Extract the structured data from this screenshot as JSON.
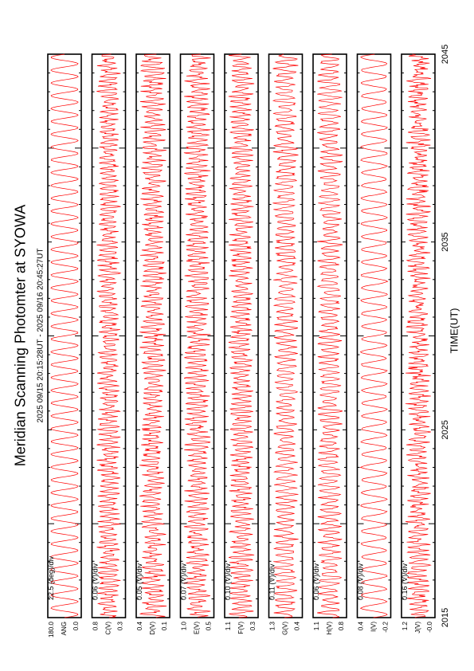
{
  "title": "Meridian Scanning Photomter at SYOWA",
  "subtitle": "2025 09/15 20:15:28UT - 2025 09/16 20:45:27UT",
  "chart_data": {
    "type": "line",
    "xlabel": "TIME(UT)",
    "xlim": [
      2015,
      2045
    ],
    "x_ticks": [
      "2015",
      "2025",
      "2035",
      "2045"
    ],
    "line_color": "#ff0000",
    "panels": [
      {
        "name": "ANG",
        "scale": "22.5 (deg)/div",
        "tick_labels": [
          "180.0",
          "0.0"
        ],
        "cycles": 44,
        "amp": 0.9,
        "noise": 0.0
      },
      {
        "name": "C(V)",
        "scale": "0.06 (V)/div",
        "tick_labels": [
          "0.8",
          "0.3"
        ],
        "cycles": 110,
        "amp": 0.5,
        "noise": 0.3
      },
      {
        "name": "D(V)",
        "scale": "0.05 (V)/div",
        "tick_labels": [
          "0.4",
          "0.1"
        ],
        "cycles": 110,
        "amp": 0.55,
        "noise": 0.35
      },
      {
        "name": "E(V)",
        "scale": "0.07 (V)/div",
        "tick_labels": [
          "1.0",
          "0.5"
        ],
        "cycles": 110,
        "amp": 0.55,
        "noise": 0.35
      },
      {
        "name": "F(V)",
        "scale": "0.10 (V)/div",
        "tick_labels": [
          "1.1",
          "0.3"
        ],
        "cycles": 110,
        "amp": 0.55,
        "noise": 0.3
      },
      {
        "name": "G(V)",
        "scale": "0.11 (V)/div",
        "tick_labels": [
          "1.3",
          "0.4"
        ],
        "cycles": 88,
        "amp": 0.6,
        "noise": 0.25
      },
      {
        "name": "H(V)",
        "scale": "0.06 (V)/div",
        "tick_labels": [
          "1.1",
          "0.8"
        ],
        "cycles": 88,
        "amp": 0.6,
        "noise": 0.25
      },
      {
        "name": "I(V)",
        "scale": "0.08 (V)/div",
        "tick_labels": [
          "0.4",
          "-0.2"
        ],
        "cycles": 44,
        "amp": 0.85,
        "noise": 0.05
      },
      {
        "name": "J(V)",
        "scale": "0.16 (V)/div",
        "tick_labels": [
          "1.2",
          "-0.0"
        ],
        "cycles": 110,
        "amp": 0.45,
        "noise": 0.4
      }
    ]
  }
}
